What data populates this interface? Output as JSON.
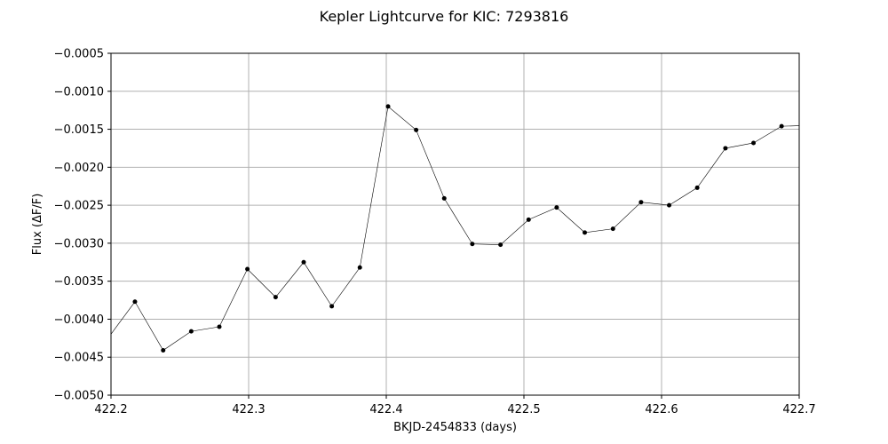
{
  "chart_data": {
    "type": "line",
    "title": "Kepler Lightcurve for KIC: 7293816",
    "xlabel": "BKJD-2454833 (days)",
    "ylabel": "Flux (ΔF/F)",
    "xlim": [
      422.2,
      422.7
    ],
    "ylim": [
      -0.005,
      -0.0005
    ],
    "xticks": [
      422.2,
      422.3,
      422.4,
      422.5,
      422.6,
      422.7
    ],
    "xtick_labels": [
      "422.2",
      "422.3",
      "422.4",
      "422.5",
      "422.6",
      "422.7"
    ],
    "yticks": [
      -0.005,
      -0.0045,
      -0.004,
      -0.0035,
      -0.003,
      -0.0025,
      -0.002,
      -0.0015,
      -0.001,
      -0.0005
    ],
    "ytick_labels": [
      "−0.0050",
      "−0.0045",
      "−0.0040",
      "−0.0035",
      "−0.0030",
      "−0.0025",
      "−0.0020",
      "−0.0015",
      "−0.0010",
      "−0.0005"
    ],
    "grid": true,
    "series": [
      {
        "x": [
          422.197,
          422.2174,
          422.2379,
          422.2583,
          422.2787,
          422.2991,
          422.3196,
          422.34,
          422.3604,
          422.3808,
          422.4013,
          422.4217,
          422.4421,
          422.4625,
          422.483,
          422.5034,
          422.5238,
          422.5442,
          422.5647,
          422.5851,
          422.6055,
          422.6259,
          422.6464,
          422.6668,
          422.6872,
          422.7076
        ],
        "y": [
          -0.00427,
          -0.00377,
          -0.00441,
          -0.00416,
          -0.0041,
          -0.00334,
          -0.00371,
          -0.00325,
          -0.00383,
          -0.00332,
          -0.0012,
          -0.00151,
          -0.00241,
          -0.00301,
          -0.00302,
          -0.00269,
          -0.00253,
          -0.00286,
          -0.00281,
          -0.00246,
          -0.0025,
          -0.00227,
          -0.00175,
          -0.00168,
          -0.00146,
          -0.00145
        ],
        "color": "#000000"
      }
    ]
  }
}
